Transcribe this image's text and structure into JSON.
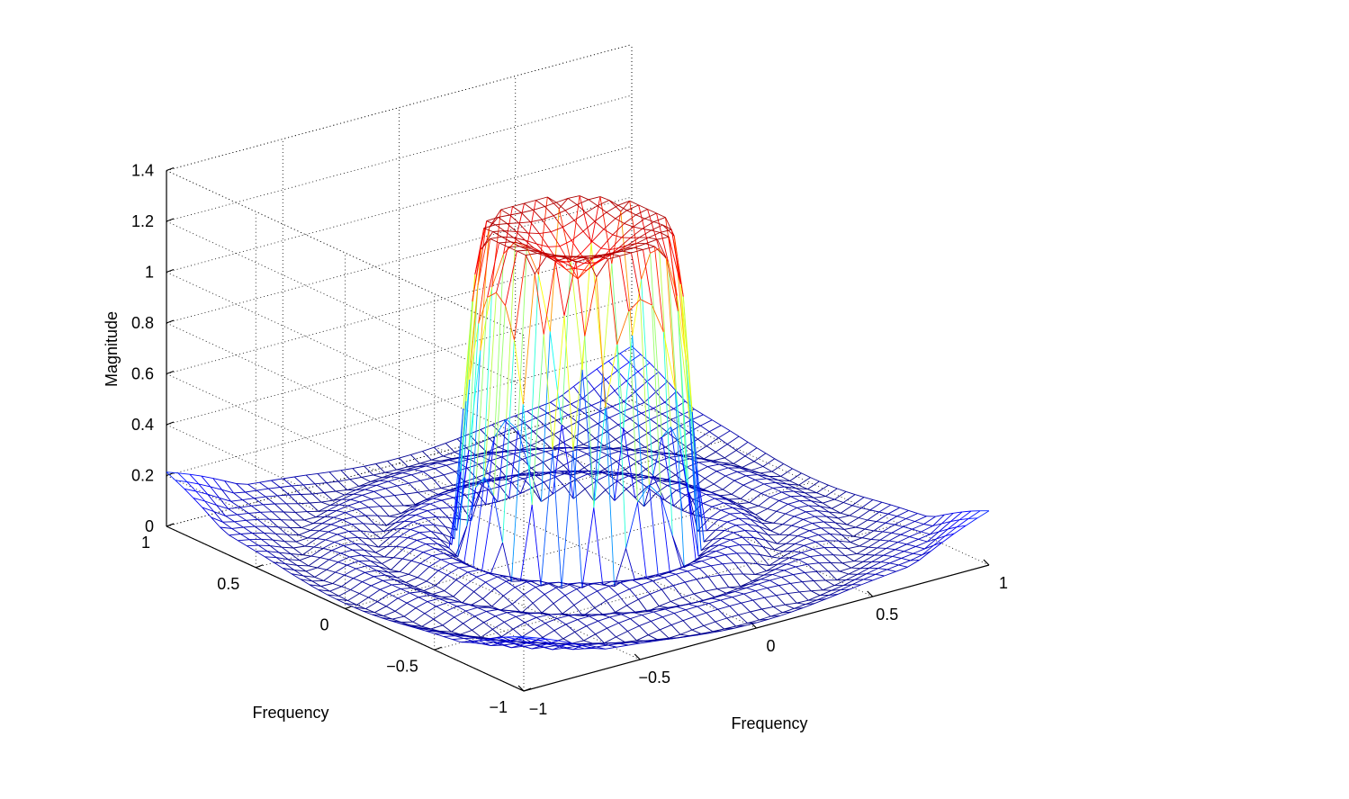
{
  "chart_data": {
    "type": "surface",
    "title": "",
    "xlabel": "Frequency",
    "ylabel": "Frequency",
    "zlabel": "Magnitude",
    "xlim": [
      -1,
      1
    ],
    "ylim": [
      -1,
      1
    ],
    "zlim": [
      0,
      1.4
    ],
    "xticks": [
      -1,
      -0.5,
      0,
      0.5,
      1
    ],
    "yticks": [
      -1,
      -0.5,
      0,
      0.5,
      1
    ],
    "zticks": [
      0,
      0.2,
      0.4,
      0.6,
      0.8,
      1,
      1.2,
      1.4
    ],
    "xtick_labels": [
      "−1",
      "−0.5",
      "0",
      "0.5",
      "1"
    ],
    "ytick_labels": [
      "−1",
      "−0.5",
      "0",
      "0.5",
      "1"
    ],
    "ztick_labels": [
      "0",
      "0.2",
      "0.4",
      "0.6",
      "0.8",
      "1",
      "1.2",
      "1.4"
    ],
    "grid": true,
    "colormap": "jet",
    "surface": {
      "description": "frequency response mesh on 41x41 grid",
      "grid_points": 41,
      "center_magnitude": 1.05,
      "peak_ring_magnitude": 1.25,
      "passband_radius": 0.42,
      "corner_magnitude": 0.2
    }
  }
}
